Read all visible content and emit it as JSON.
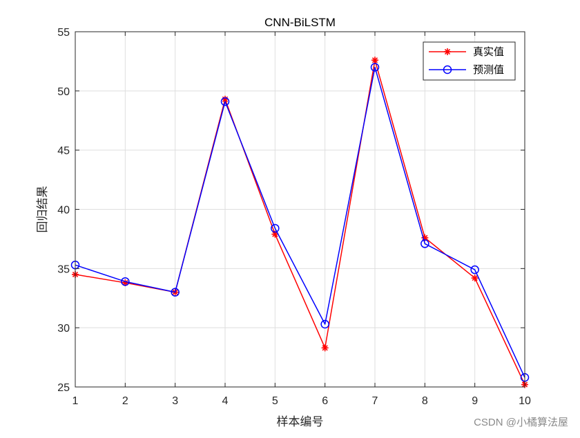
{
  "chart_data": {
    "type": "line",
    "title": "CNN-BiLSTM",
    "xlabel": "样本编号",
    "ylabel": "回归结果",
    "x": [
      1,
      2,
      3,
      4,
      5,
      6,
      7,
      8,
      9,
      10
    ],
    "xlim": [
      1,
      10
    ],
    "ylim": [
      25,
      55
    ],
    "xticks": [
      1,
      2,
      3,
      4,
      5,
      6,
      7,
      8,
      9,
      10
    ],
    "yticks": [
      25,
      30,
      35,
      40,
      45,
      50,
      55
    ],
    "grid": true,
    "legend_position": "top-right",
    "series": [
      {
        "name": "真实值",
        "color": "#ff0000",
        "marker": "asterisk",
        "values": [
          34.5,
          33.8,
          33.0,
          49.3,
          37.9,
          28.3,
          52.6,
          37.6,
          34.2,
          25.2
        ]
      },
      {
        "name": "预测值",
        "color": "#0000ff",
        "marker": "circle",
        "values": [
          35.3,
          33.9,
          33.0,
          49.1,
          38.4,
          30.3,
          52.0,
          37.1,
          34.9,
          25.8
        ]
      }
    ]
  },
  "watermark": "CSDN @小橘算法屋"
}
